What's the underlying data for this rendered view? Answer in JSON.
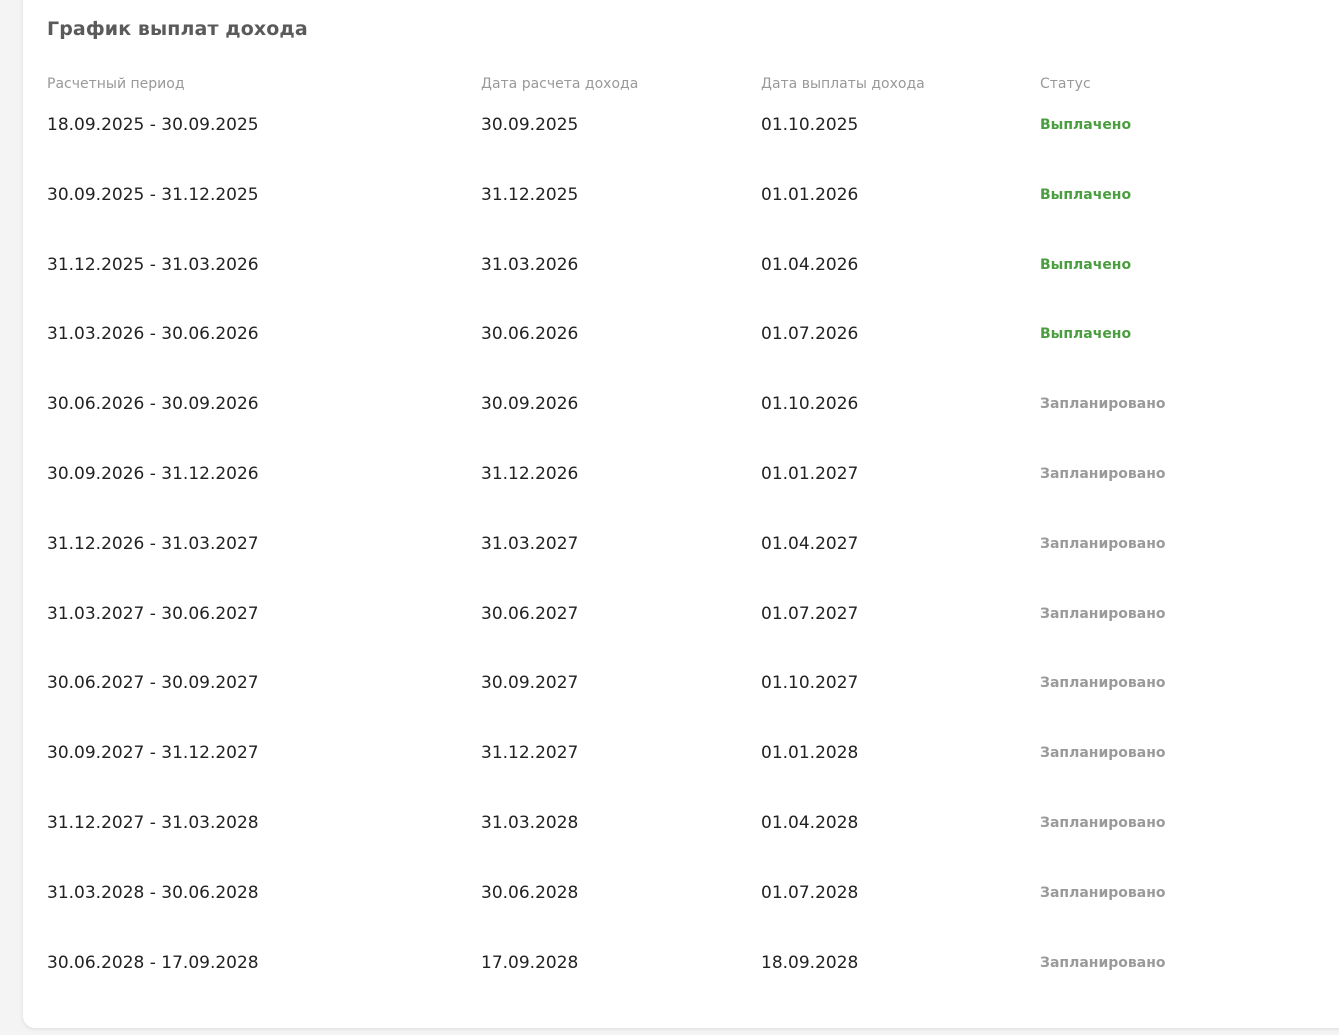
{
  "title": "График выплат дохода",
  "colors": {
    "paid": "#4a9e3f",
    "planned": "#9a9a9a"
  },
  "columns": [
    "Расчетный период",
    "Дата расчета дохода",
    "Дата выплаты дохода",
    "Статус"
  ],
  "rows": [
    {
      "period": "18.09.2025 - 30.09.2025",
      "calc_date": "30.09.2025",
      "pay_date": "01.10.2025",
      "status": "Выплачено",
      "state": "paid"
    },
    {
      "period": "30.09.2025 - 31.12.2025",
      "calc_date": "31.12.2025",
      "pay_date": "01.01.2026",
      "status": "Выплачено",
      "state": "paid"
    },
    {
      "period": "31.12.2025 - 31.03.2026",
      "calc_date": "31.03.2026",
      "pay_date": "01.04.2026",
      "status": "Выплачено",
      "state": "paid"
    },
    {
      "period": "31.03.2026 - 30.06.2026",
      "calc_date": "30.06.2026",
      "pay_date": "01.07.2026",
      "status": "Выплачено",
      "state": "paid"
    },
    {
      "period": "30.06.2026 - 30.09.2026",
      "calc_date": "30.09.2026",
      "pay_date": "01.10.2026",
      "status": "Запланировано",
      "state": "planned"
    },
    {
      "period": "30.09.2026 - 31.12.2026",
      "calc_date": "31.12.2026",
      "pay_date": "01.01.2027",
      "status": "Запланировано",
      "state": "planned"
    },
    {
      "period": "31.12.2026 - 31.03.2027",
      "calc_date": "31.03.2027",
      "pay_date": "01.04.2027",
      "status": "Запланировано",
      "state": "planned"
    },
    {
      "period": "31.03.2027 - 30.06.2027",
      "calc_date": "30.06.2027",
      "pay_date": "01.07.2027",
      "status": "Запланировано",
      "state": "planned"
    },
    {
      "period": "30.06.2027 - 30.09.2027",
      "calc_date": "30.09.2027",
      "pay_date": "01.10.2027",
      "status": "Запланировано",
      "state": "planned"
    },
    {
      "period": "30.09.2027 - 31.12.2027",
      "calc_date": "31.12.2027",
      "pay_date": "01.01.2028",
      "status": "Запланировано",
      "state": "planned"
    },
    {
      "period": "31.12.2027 - 31.03.2028",
      "calc_date": "31.03.2028",
      "pay_date": "01.04.2028",
      "status": "Запланировано",
      "state": "planned"
    },
    {
      "period": "31.03.2028 - 30.06.2028",
      "calc_date": "30.06.2028",
      "pay_date": "01.07.2028",
      "status": "Запланировано",
      "state": "planned"
    },
    {
      "period": "30.06.2028 - 17.09.2028",
      "calc_date": "17.09.2028",
      "pay_date": "18.09.2028",
      "status": "Запланировано",
      "state": "planned"
    }
  ]
}
